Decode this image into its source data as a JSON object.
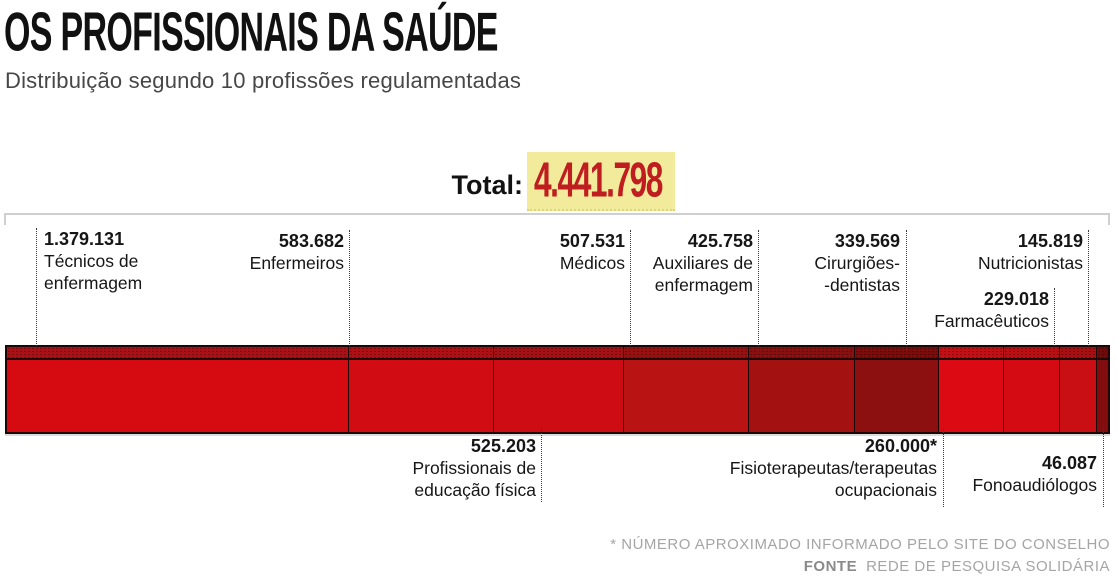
{
  "header": {
    "title": "OS PROFISSIONAIS DA SAÚDE",
    "subtitle": "Distribuição segundo 10 profissões regulamentadas"
  },
  "total": {
    "label": "Total:",
    "value": "4.441.798",
    "highlight_color": "#f2eb9b",
    "value_color": "#bf1d1f"
  },
  "chart_data": {
    "type": "bar",
    "variant": "horizontal-stacked-single-bar",
    "title": "OS PROFISSIONAIS DA SAÚDE",
    "subtitle": "Distribuição segundo 10 profissões regulamentadas",
    "total": 4441798,
    "total_display": "4.441.798",
    "categories": [
      "Técnicos de enfermagem",
      "Enfermeiros",
      "Profissionais de educação física",
      "Médicos",
      "Auxiliares de enfermagem",
      "Cirurgiões-dentistas",
      "Fisioterapeutas/terapeutas ocupacionais",
      "Farmacêuticos",
      "Nutricionistas",
      "Fonoaudiólogos"
    ],
    "values": [
      1379131,
      583682,
      525203,
      507531,
      425758,
      339569,
      260000,
      229018,
      145819,
      46087
    ],
    "segments": [
      {
        "id": "tecnicos",
        "name": "Técnicos de enfermagem",
        "name_lines": [
          "Técnicos de",
          "enfermagem"
        ],
        "value": 1379131,
        "display_value": "1.379.131",
        "color": "#d60b12",
        "strip_color": "#a81216",
        "label_side": "above"
      },
      {
        "id": "enfermeiros",
        "name": "Enfermeiros",
        "name_lines": [
          "Enfermeiros"
        ],
        "value": 583682,
        "display_value": "583.682",
        "color": "#d20c13",
        "strip_color": "#ae1015",
        "label_side": "above"
      },
      {
        "id": "educacao-fisica",
        "name": "Profissionais de educação física",
        "name_lines": [
          "Profissionais de",
          "educação física"
        ],
        "value": 525203,
        "display_value": "525.203",
        "color": "#cd0d13",
        "strip_color": "#a41013",
        "label_side": "below"
      },
      {
        "id": "medicos",
        "name": "Médicos",
        "name_lines": [
          "Médicos"
        ],
        "value": 507531,
        "display_value": "507.531",
        "color": "#b91413",
        "strip_color": "#971111",
        "label_side": "above"
      },
      {
        "id": "auxiliares",
        "name": "Auxiliares de enfermagem",
        "name_lines": [
          "Auxiliares de",
          "enfermagem"
        ],
        "value": 425758,
        "display_value": "425.758",
        "color": "#a31211",
        "strip_color": "#891010",
        "label_side": "above"
      },
      {
        "id": "cirurgioes",
        "name": "Cirurgiões-dentistas",
        "name_lines": [
          "Cirurgiões-",
          "-dentistas"
        ],
        "value": 339569,
        "display_value": "339.569",
        "color": "#8c100f",
        "strip_color": "#7a0d0c",
        "label_side": "above"
      },
      {
        "id": "fisioterapeutas",
        "name": "Fisioterapeutas/terapeutas ocupacionais",
        "name_lines": [
          "Fisioterapeutas/terapeutas",
          "ocupacionais"
        ],
        "value": 260000,
        "display_value": "260.000*",
        "color": "#dc0b13",
        "strip_color": "#c41014",
        "label_side": "below"
      },
      {
        "id": "farmaceuticos",
        "name": "Farmacêuticos",
        "name_lines": [
          "Farmacêuticos"
        ],
        "value": 229018,
        "display_value": "229.018",
        "color": "#d40b12",
        "strip_color": "#bc0f13",
        "label_side": "above"
      },
      {
        "id": "nutricionistas",
        "name": "Nutricionistas",
        "name_lines": [
          "Nutricionistas"
        ],
        "value": 145819,
        "display_value": "145.819",
        "color": "#c90f13",
        "strip_color": "#a80f12",
        "label_side": "above"
      },
      {
        "id": "fonoaudiologos",
        "name": "Fonoaudiólogos",
        "name_lines": [
          "Fonoaudiólogos"
        ],
        "value": 46087,
        "display_value": "46.087",
        "color": "#820d0e",
        "strip_color": "#700b0b",
        "label_side": "below"
      }
    ],
    "legend_position": "none",
    "grid": false,
    "footnote": "* NÚMERO APROXIMADO INFORMADO PELO SITE DO CONSELHO",
    "source_label": "FONTE",
    "source": "REDE DE PESQUISA SOLIDÁRIA"
  },
  "footer": {
    "footnote": "* NÚMERO APROXIMADO INFORMADO PELO SITE DO CONSELHO",
    "source_label": "FONTE",
    "source": "REDE DE PESQUISA SOLIDÁRIA"
  }
}
